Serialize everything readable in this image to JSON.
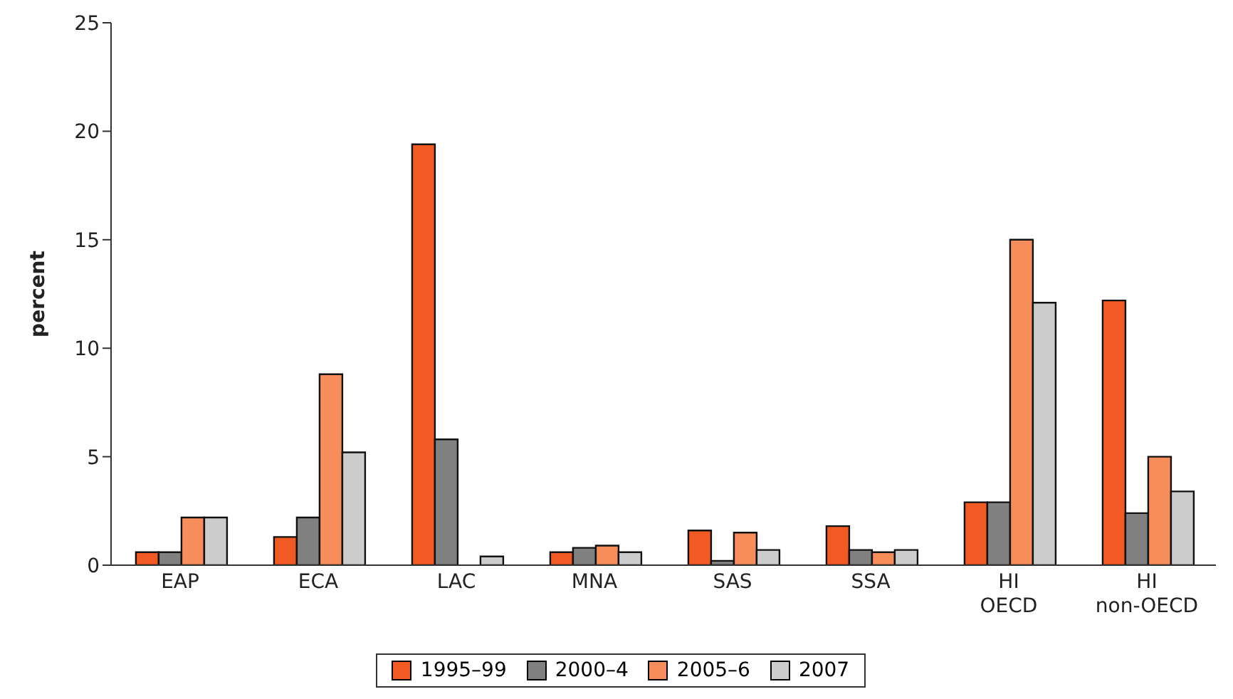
{
  "chart_data": {
    "type": "bar",
    "ylabel": "percent",
    "categories": [
      "EAP",
      "ECA",
      "LAC",
      "MNA",
      "SAS",
      "SSA",
      "HI\nOECD",
      "HI\nnon-OECD"
    ],
    "series": [
      {
        "name": "1995–99",
        "color": "#f15a22",
        "values": [
          0.6,
          1.3,
          19.4,
          0.6,
          1.6,
          1.8,
          2.9,
          12.2
        ]
      },
      {
        "name": "2000–4",
        "color": "#808080",
        "values": [
          0.6,
          2.2,
          5.8,
          0.8,
          0.2,
          0.7,
          2.9,
          2.4
        ]
      },
      {
        "name": "2005–6",
        "color": "#f68d5a",
        "values": [
          2.2,
          8.8,
          null,
          0.9,
          1.5,
          0.6,
          15,
          5
        ]
      },
      {
        "name": "2007",
        "color": "#cccccc",
        "values": [
          2.2,
          5.2,
          0.4,
          0.6,
          0.7,
          0.7,
          12.1,
          3.4
        ]
      }
    ],
    "ylim": [
      0,
      25
    ],
    "yticks": [
      0,
      5,
      10,
      15,
      20,
      25
    ],
    "grid": false,
    "legend": "bottom"
  }
}
